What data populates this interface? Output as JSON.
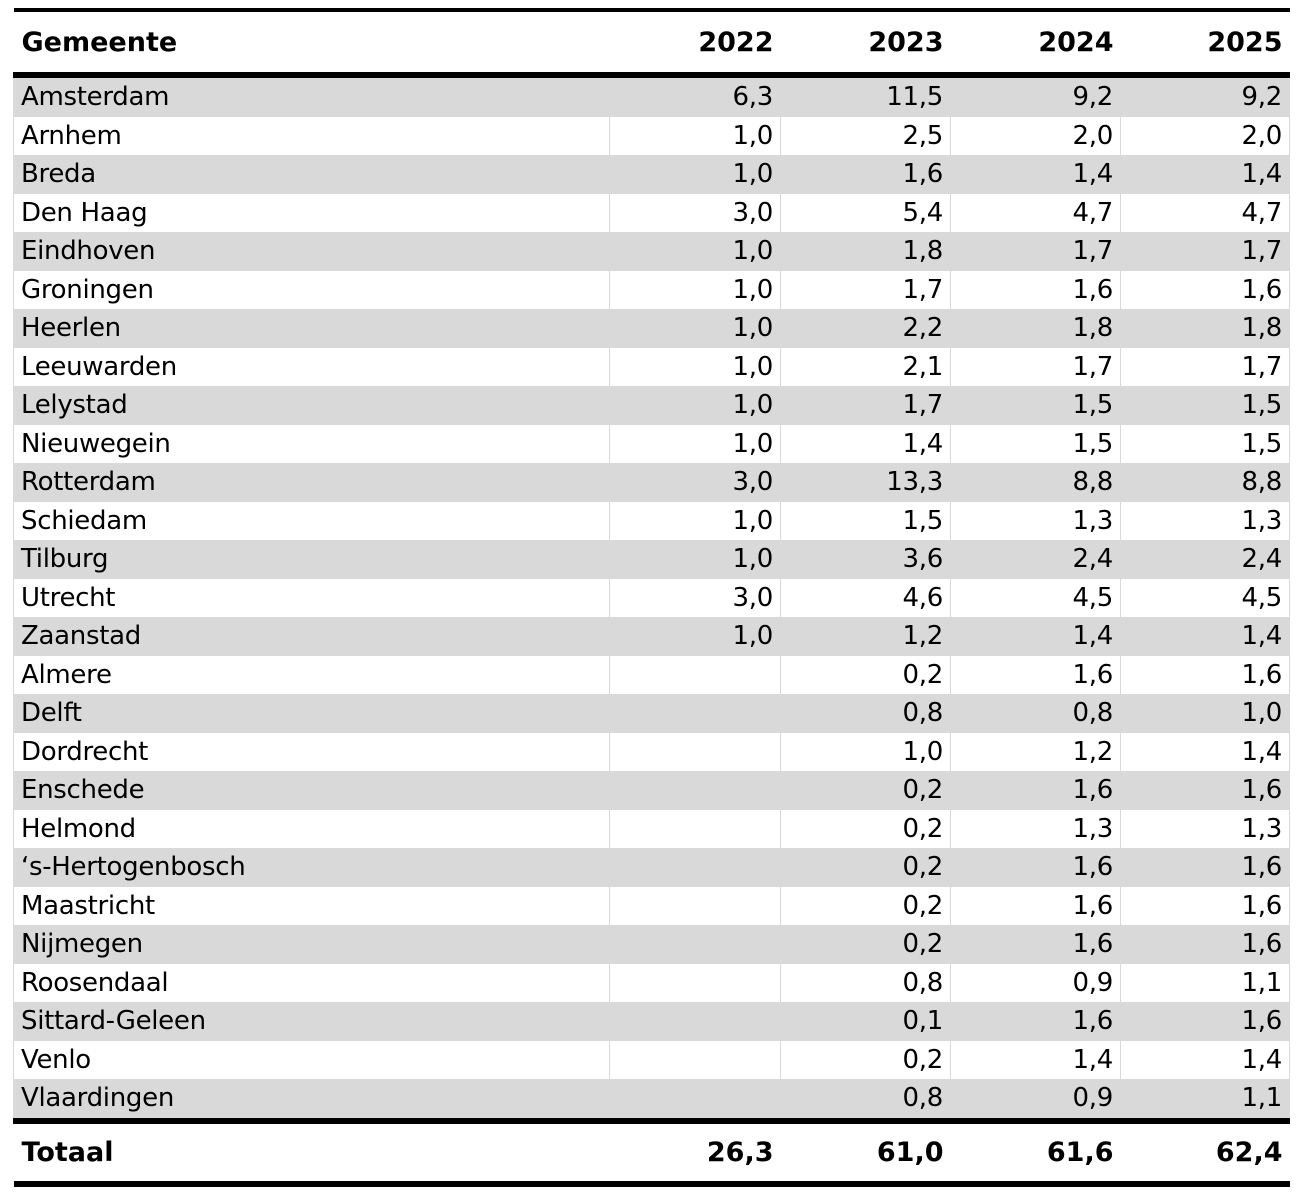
{
  "table": {
    "columns": [
      "Gemeente",
      "2022",
      "2023",
      "2024",
      "2025"
    ],
    "rows": [
      {
        "gemeente": "Amsterdam",
        "values": [
          "6,3",
          "11,5",
          "9,2",
          "9,2"
        ]
      },
      {
        "gemeente": "Arnhem",
        "values": [
          "1,0",
          "2,5",
          "2,0",
          "2,0"
        ]
      },
      {
        "gemeente": "Breda",
        "values": [
          "1,0",
          "1,6",
          "1,4",
          "1,4"
        ]
      },
      {
        "gemeente": "Den Haag",
        "values": [
          "3,0",
          "5,4",
          "4,7",
          "4,7"
        ]
      },
      {
        "gemeente": "Eindhoven",
        "values": [
          "1,0",
          "1,8",
          "1,7",
          "1,7"
        ]
      },
      {
        "gemeente": "Groningen",
        "values": [
          "1,0",
          "1,7",
          "1,6",
          "1,6"
        ]
      },
      {
        "gemeente": "Heerlen",
        "values": [
          "1,0",
          "2,2",
          "1,8",
          "1,8"
        ]
      },
      {
        "gemeente": "Leeuwarden",
        "values": [
          "1,0",
          "2,1",
          "1,7",
          "1,7"
        ]
      },
      {
        "gemeente": "Lelystad",
        "values": [
          "1,0",
          "1,7",
          "1,5",
          "1,5"
        ]
      },
      {
        "gemeente": "Nieuwegein",
        "values": [
          "1,0",
          "1,4",
          "1,5",
          "1,5"
        ]
      },
      {
        "gemeente": "Rotterdam",
        "values": [
          "3,0",
          "13,3",
          "8,8",
          "8,8"
        ]
      },
      {
        "gemeente": "Schiedam",
        "values": [
          "1,0",
          "1,5",
          "1,3",
          "1,3"
        ]
      },
      {
        "gemeente": "Tilburg",
        "values": [
          "1,0",
          "3,6",
          "2,4",
          "2,4"
        ]
      },
      {
        "gemeente": "Utrecht",
        "values": [
          "3,0",
          "4,6",
          "4,5",
          "4,5"
        ]
      },
      {
        "gemeente": "Zaanstad",
        "values": [
          "1,0",
          "1,2",
          "1,4",
          "1,4"
        ]
      },
      {
        "gemeente": "Almere",
        "values": [
          "",
          "0,2",
          "1,6",
          "1,6"
        ]
      },
      {
        "gemeente": "Delft",
        "values": [
          "",
          "0,8",
          "0,8",
          "1,0"
        ]
      },
      {
        "gemeente": "Dordrecht",
        "values": [
          "",
          "1,0",
          "1,2",
          "1,4"
        ]
      },
      {
        "gemeente": "Enschede",
        "values": [
          "",
          "0,2",
          "1,6",
          "1,6"
        ]
      },
      {
        "gemeente": "Helmond",
        "values": [
          "",
          "0,2",
          "1,3",
          "1,3"
        ]
      },
      {
        "gemeente": "‘s-Hertogenbosch",
        "values": [
          "",
          "0,2",
          "1,6",
          "1,6"
        ]
      },
      {
        "gemeente": "Maastricht",
        "values": [
          "",
          "0,2",
          "1,6",
          "1,6"
        ]
      },
      {
        "gemeente": "Nijmegen",
        "values": [
          "",
          "0,2",
          "1,6",
          "1,6"
        ]
      },
      {
        "gemeente": "Roosendaal",
        "values": [
          "",
          "0,8",
          "0,9",
          "1,1"
        ]
      },
      {
        "gemeente": "Sittard-Geleen",
        "values": [
          "",
          "0,1",
          "1,6",
          "1,6"
        ]
      },
      {
        "gemeente": "Venlo",
        "values": [
          "",
          "0,2",
          "1,4",
          "1,4"
        ]
      },
      {
        "gemeente": "Vlaardingen",
        "values": [
          "",
          "0,8",
          "0,9",
          "1,1"
        ]
      }
    ],
    "total": {
      "label": "Totaal",
      "values": [
        "26,3",
        "61,0",
        "61,6",
        "62,4"
      ]
    }
  },
  "colors": {
    "stripe": "#d9d9d9",
    "grid": "#d9d9d9",
    "rule": "#000000"
  }
}
